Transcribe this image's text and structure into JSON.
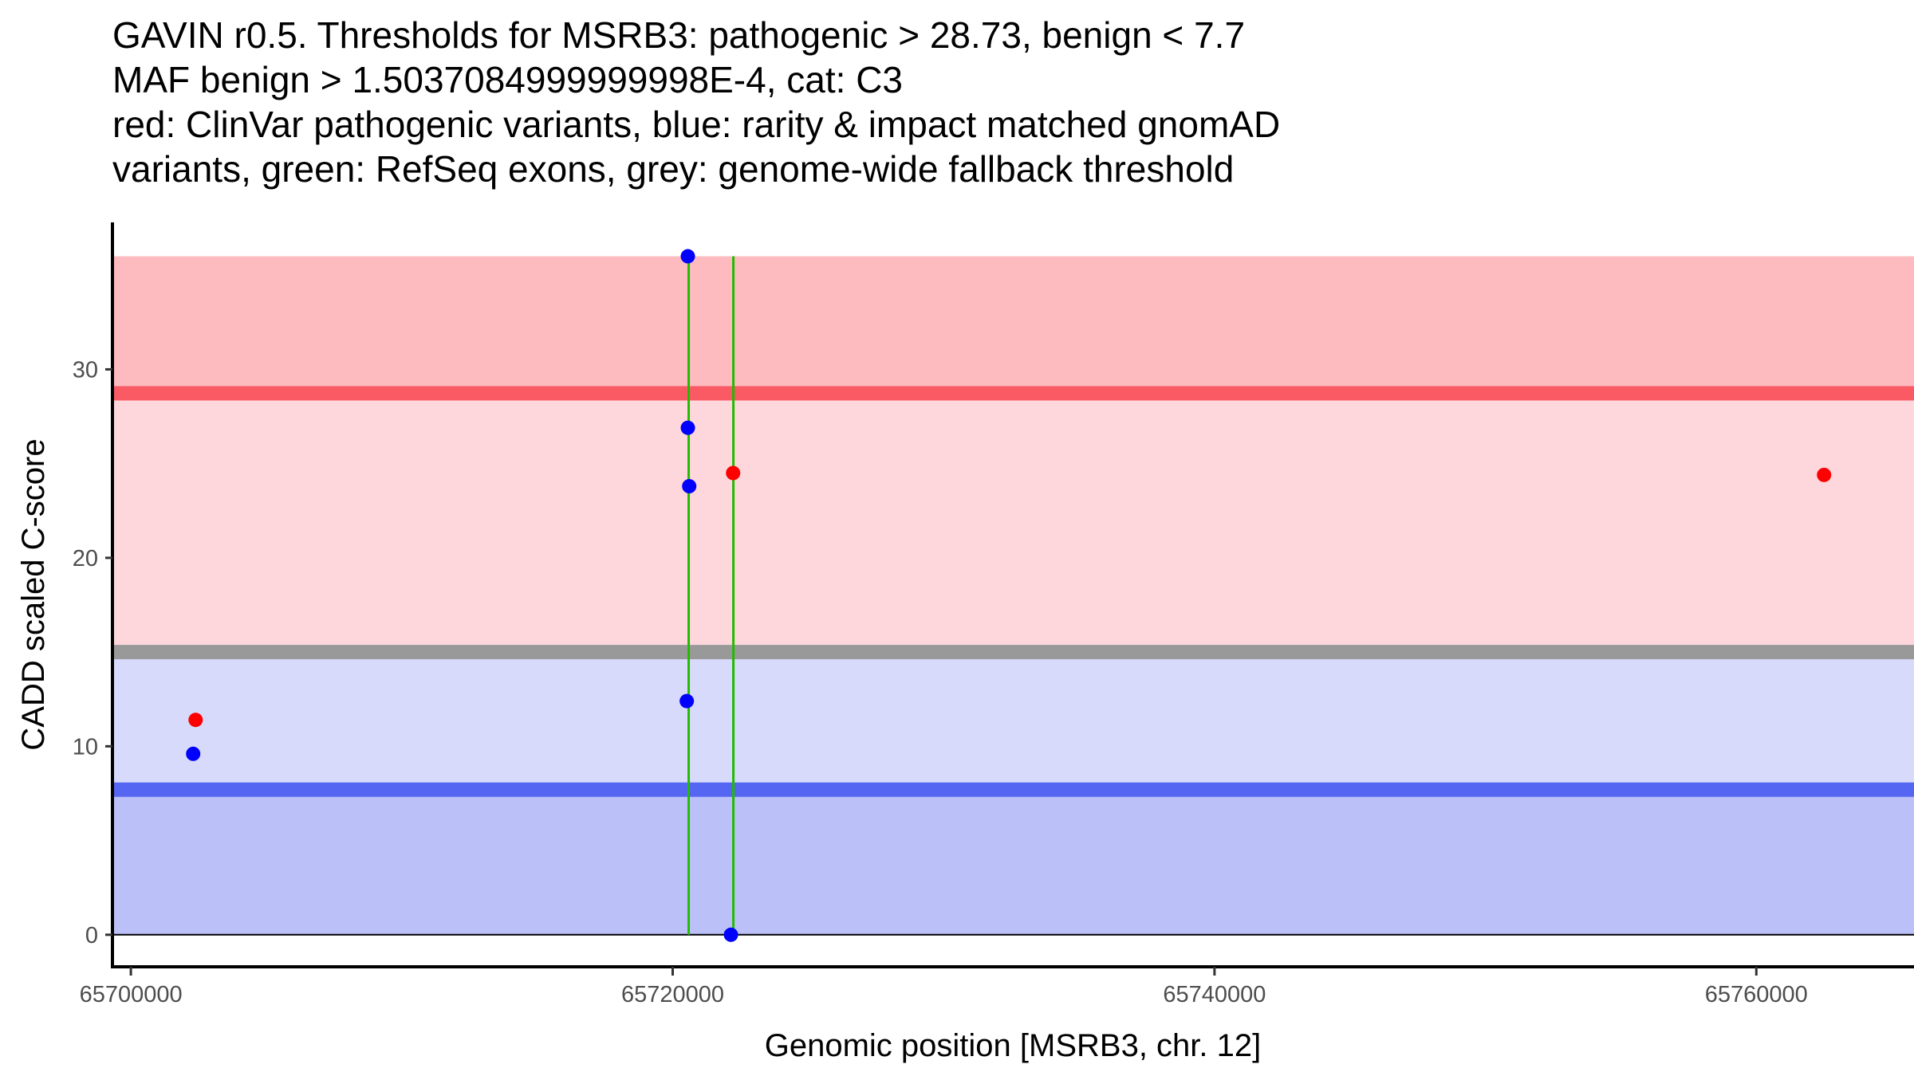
{
  "chart_data": {
    "type": "scatter",
    "title_lines": [
      "GAVIN r0.5. Thresholds for MSRB3: pathogenic > 28.73, benign < 7.7",
      "MAF benign > 1.5037084999999998E-4, cat: C3",
      "red: ClinVar pathogenic variants, blue: rarity & impact matched gnomAD",
      "variants, green: RefSeq exons, grey: genome-wide fallback threshold"
    ],
    "xlabel": "Genomic position [MSRB3, chr. 12]",
    "ylabel": "CADD scaled C-score",
    "xlim": [
      65699320,
      65765820
    ],
    "ylim": [
      -1.7,
      37.8
    ],
    "xticks": [
      65700000,
      65720000,
      65740000,
      65760000
    ],
    "xtick_labels": [
      "65700000",
      "65720000",
      "65740000",
      "65760000"
    ],
    "yticks": [
      0,
      10,
      20,
      30
    ],
    "ytick_labels": [
      "0",
      "10",
      "20",
      "30"
    ],
    "grid": false,
    "thresholds": {
      "pathogenic": 28.73,
      "benign": 7.7,
      "fallback": 15,
      "max": 36
    },
    "bands": [
      {
        "name": "pathogenic-zone",
        "y0": 28.73,
        "y1": 36,
        "color": "#FDBBC0"
      },
      {
        "name": "fallback-pathogenic-zone",
        "y0": 15,
        "y1": 28.73,
        "color": "#FDD7DC"
      },
      {
        "name": "fallback-benign-zone",
        "y0": 7.7,
        "y1": 15,
        "color": "#D7DAFB"
      },
      {
        "name": "benign-zone",
        "y0": 0,
        "y1": 7.7,
        "color": "#BBC0F9"
      }
    ],
    "lines": [
      {
        "name": "pathogenic-threshold-line",
        "y": 28.73,
        "color": "#FA5A64"
      },
      {
        "name": "fallback-threshold-line",
        "y": 15,
        "color": "#999999"
      },
      {
        "name": "benign-threshold-line",
        "y": 7.7,
        "color": "#5466F2"
      }
    ],
    "exons": [
      65720590,
      65722240
    ],
    "exon_color": "#22BB00",
    "series": [
      {
        "name": "ClinVar pathogenic",
        "color": "#FF0000",
        "points": [
          [
            65702390,
            11.4
          ],
          [
            65722230,
            24.5
          ],
          [
            65762500,
            24.4
          ]
        ]
      },
      {
        "name": "gnomAD matched",
        "color": "#0000FF",
        "points": [
          [
            65702300,
            9.6
          ],
          [
            65720560,
            36.0
          ],
          [
            65720560,
            26.9
          ],
          [
            65720610,
            23.8
          ],
          [
            65720520,
            12.4
          ],
          [
            65722150,
            0
          ]
        ]
      }
    ]
  }
}
